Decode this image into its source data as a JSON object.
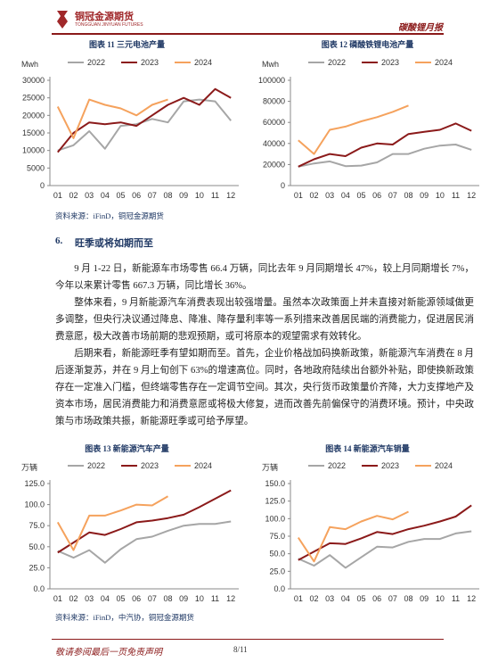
{
  "header": {
    "company": "铜冠金源期货",
    "company_en": "TONGGUAN JINYUAN FUTURES",
    "report": "碳酸锂月报"
  },
  "chart_data": [
    {
      "type": "line",
      "title": "图表 11 三元电池产量",
      "y_label": "Mwh",
      "categories": [
        "01",
        "02",
        "03",
        "04",
        "05",
        "06",
        "07",
        "08",
        "09",
        "10",
        "11",
        "12"
      ],
      "series": [
        {
          "name": "2022",
          "color": "#a6a6a6",
          "values": [
            10000,
            11500,
            15500,
            10500,
            17000,
            17500,
            19000,
            18000,
            24000,
            24500,
            24000,
            18500
          ]
        },
        {
          "name": "2023",
          "color": "#8b1a1a",
          "values": [
            9500,
            15000,
            18000,
            17500,
            18000,
            17000,
            20000,
            23000,
            25000,
            23000,
            27500,
            25000
          ]
        },
        {
          "name": "2024",
          "color": "#f5a25d",
          "values": [
            22500,
            13500,
            24500,
            23000,
            22000,
            20000,
            23000,
            24500,
            null,
            null,
            null,
            null
          ]
        }
      ],
      "ylim": [
        0,
        30000
      ],
      "yticks": [
        0,
        5000,
        10000,
        15000,
        20000,
        25000,
        30000
      ]
    },
    {
      "type": "line",
      "title": "图表 12 磷酸铁锂电池产量",
      "y_label": "Mwh",
      "categories": [
        "01",
        "02",
        "03",
        "04",
        "05",
        "06",
        "07",
        "08",
        "09",
        "10",
        "11",
        "12"
      ],
      "series": [
        {
          "name": "2022",
          "color": "#a6a6a6",
          "values": [
            18000,
            21000,
            23000,
            18500,
            19000,
            22000,
            30000,
            30000,
            35000,
            38000,
            39000,
            34000
          ]
        },
        {
          "name": "2023",
          "color": "#8b1a1a",
          "values": [
            18000,
            25000,
            30000,
            28000,
            36000,
            40000,
            39000,
            49000,
            51000,
            53000,
            59000,
            52000
          ]
        },
        {
          "name": "2024",
          "color": "#f5a25d",
          "values": [
            43000,
            30000,
            53000,
            56000,
            61000,
            65000,
            70000,
            76000,
            null,
            null,
            null,
            null
          ]
        }
      ],
      "ylim": [
        0,
        100000
      ],
      "yticks": [
        0,
        20000,
        40000,
        60000,
        80000,
        100000
      ]
    },
    {
      "type": "line",
      "title": "图表 13 新能源汽车产量",
      "y_label": "万辆",
      "categories": [
        "01",
        "02",
        "03",
        "04",
        "05",
        "06",
        "07",
        "08",
        "09",
        "10",
        "11",
        "12"
      ],
      "series": [
        {
          "name": "2022",
          "color": "#a6a6a6",
          "values": [
            45,
            37,
            46,
            31,
            47,
            59,
            62,
            69,
            75,
            77,
            77,
            80
          ]
        },
        {
          "name": "2023",
          "color": "#8b1a1a",
          "values": [
            43,
            55,
            67,
            64,
            71,
            79,
            81,
            84,
            88,
            97,
            107,
            117
          ]
        },
        {
          "name": "2024",
          "color": "#f5a25d",
          "values": [
            79,
            46,
            87,
            87,
            93,
            100,
            99,
            110,
            null,
            null,
            null,
            null
          ]
        }
      ],
      "ylim": [
        0,
        125
      ],
      "yticks": [
        {
          "value": 0,
          "label": "0.0"
        },
        {
          "value": 25,
          "label": "25.0"
        },
        {
          "value": 50,
          "label": "50.0"
        },
        {
          "value": 75,
          "label": "75.0"
        },
        {
          "value": 100,
          "label": "100.0"
        },
        {
          "value": 125,
          "label": "125.0"
        }
      ]
    },
    {
      "type": "line",
      "title": "图表 14 新能源汽车销量",
      "y_label": "万辆",
      "categories": [
        "01",
        "02",
        "03",
        "04",
        "05",
        "06",
        "07",
        "08",
        "09",
        "10",
        "11",
        "12"
      ],
      "series": [
        {
          "name": "2022",
          "color": "#a6a6a6",
          "values": [
            43,
            33,
            48,
            30,
            45,
            60,
            59,
            67,
            71,
            71,
            79,
            82
          ]
        },
        {
          "name": "2023",
          "color": "#8b1a1a",
          "values": [
            41,
            53,
            65,
            64,
            72,
            81,
            78,
            85,
            90,
            96,
            103,
            119
          ]
        },
        {
          "name": "2024",
          "color": "#f5a25d",
          "values": [
            73,
            39,
            88,
            85,
            96,
            104,
            99,
            110,
            null,
            null,
            null,
            null
          ]
        }
      ],
      "ylim": [
        0,
        150
      ],
      "yticks": [
        {
          "value": 0,
          "label": "0.0"
        },
        {
          "value": 25,
          "label": "25.0"
        },
        {
          "value": 50,
          "label": "50.0"
        },
        {
          "value": 75,
          "label": "75.0"
        },
        {
          "value": 100,
          "label": "100.0"
        },
        {
          "value": 125,
          "label": "125.0"
        },
        {
          "value": 150,
          "label": "150.0"
        }
      ]
    }
  ],
  "sources": [
    "资料来源：iFinD，铜冠金源期货",
    "资料来源：iFinD，中汽协，铜冠金源期货"
  ],
  "section": {
    "number": "6.",
    "title": "旺季或将如期而至"
  },
  "paragraphs": [
    "9 月 1-22 日，新能源车市场零售 66.4 万辆，同比去年 9 月同期增长 47%，较上月同期增长 7%，今年以来累计零售 667.3 万辆，同比增长 36%。",
    "整体来看，9 月新能源汽车消费表现出较强增量。虽然本次政策面上并未直接对新能源领域做更多调整，但央行决议通过降息、降准、降存量利率等一系列措来改善居民端的消费能力，促进居民消费意愿，极大改善市场前期的悲观预期，或可将原本的观望需求有效转化。",
    "后期来看，新能源旺季有望如期而至。首先，企业价格战加码换新政策，新能源汽车消费在 8 月后逐渐复苏，并在 9 月上旬创下 63%的增速高位。同时，各地政府陆续出台额外补贴，即使换新政策存在一定准入门槛，但终端零售存在一定调节空间。其次，央行货币政策量价齐降，大力支撑地产及资本市场，居民消费能力和消费意愿或将极大修复，进而改善先前偏保守的消费环境。预计，中央政策与市场政策共振，新能源旺季或可给予厚望。"
  ],
  "footer": {
    "disclaimer": "敬请参阅最后一页免责声明",
    "page": "8/11"
  }
}
